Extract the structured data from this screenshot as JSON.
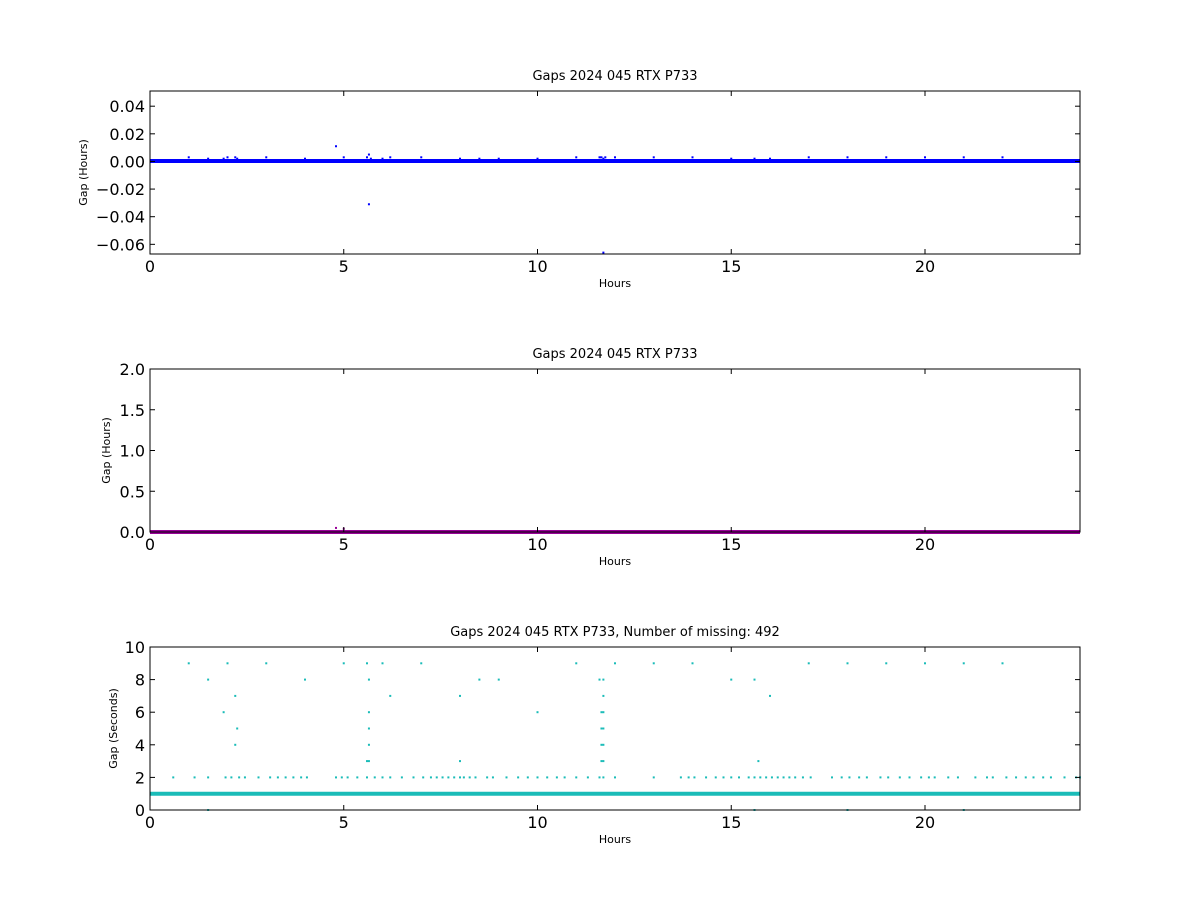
{
  "chart_data": [
    {
      "type": "scatter",
      "title": "Gaps 2024 045 RTX  P733",
      "xlabel": "Hours",
      "ylabel": "Gap (Hours)",
      "xlim": [
        0,
        24
      ],
      "ylim": [
        -0.067,
        0.051
      ],
      "xticks": [
        0,
        5,
        10,
        15,
        20
      ],
      "xtick_labels": [
        "0",
        "5",
        "10",
        "15",
        "20"
      ],
      "yticks": [
        0.04,
        0.02,
        0.0,
        -0.02,
        -0.04,
        -0.06
      ],
      "ytick_labels": [
        "0.04",
        "0.02",
        "0.00",
        "−0.02",
        "−0.04",
        "−0.06"
      ],
      "grid": false,
      "color": "#0000ff",
      "baseline": {
        "y": 0.00028,
        "x_range": [
          0,
          24
        ]
      },
      "series": [
        {
          "x": [
            1.0,
            1.5,
            1.9,
            2.0,
            2.2,
            2.25,
            3.0,
            4.0,
            4.8,
            4.8,
            5.0,
            5.0,
            5.6,
            5.65,
            5.65,
            5.7,
            6.0,
            6.2,
            6.2,
            7.0,
            8.0,
            8.5,
            9.0,
            10.0,
            11.0,
            11.6,
            11.65,
            11.7,
            11.75,
            11.7,
            12.0,
            13.0,
            14.0,
            15.0,
            15.6,
            16.0,
            17.0,
            18.0,
            19.0,
            20.0,
            21.0,
            22.0
          ],
          "y": [
            0.003,
            0.002,
            0.002,
            0.003,
            0.003,
            0.002,
            0.003,
            0.002,
            0.011,
            0.001,
            0.003,
            0.001,
            0.003,
            0.005,
            -0.031,
            0.002,
            0.002,
            0.003,
            0.0,
            0.003,
            0.002,
            0.002,
            0.002,
            0.002,
            0.003,
            0.003,
            0.003,
            0.002,
            0.003,
            -0.066,
            0.003,
            0.003,
            0.003,
            0.002,
            0.002,
            0.002,
            0.003,
            0.003,
            0.003,
            0.003,
            0.003,
            0.003
          ]
        }
      ]
    },
    {
      "type": "scatter",
      "title": "Gaps 2024 045 RTX  P733",
      "xlabel": "Hours",
      "ylabel": "Gap (Hours)",
      "xlim": [
        0,
        24
      ],
      "ylim": [
        0,
        2.0
      ],
      "xticks": [
        0,
        5,
        10,
        15,
        20
      ],
      "xtick_labels": [
        "0",
        "5",
        "10",
        "15",
        "20"
      ],
      "yticks": [
        2.0,
        1.5,
        1.0,
        0.5,
        0.0
      ],
      "ytick_labels": [
        "2.0",
        "1.5",
        "1.0",
        "0.5",
        "0.0"
      ],
      "grid": false,
      "color": "#990099",
      "baseline": {
        "y": 0.0,
        "x_range": [
          0,
          24
        ]
      },
      "series": [
        {
          "x": [
            4.8,
            5.0
          ],
          "y": [
            0.05,
            0.04
          ]
        }
      ]
    },
    {
      "type": "scatter",
      "title": "Gaps 2024 045 RTX  P733, Number of missing: 492",
      "xlabel": "Hours",
      "ylabel": "Gap (Seconds)",
      "xlim": [
        0,
        24
      ],
      "ylim": [
        0,
        10
      ],
      "xticks": [
        0,
        5,
        10,
        15,
        20
      ],
      "xtick_labels": [
        "0",
        "5",
        "10",
        "15",
        "20"
      ],
      "yticks": [
        10,
        8,
        6,
        4,
        2,
        0
      ],
      "ytick_labels": [
        "10",
        "8",
        "6",
        "4",
        "2",
        "0"
      ],
      "grid": false,
      "color": "#1abcb8",
      "baseline": {
        "y": 1.0,
        "x_range": [
          0,
          24
        ]
      },
      "series": [
        {
          "x": [
            1.0,
            2.0,
            3.0,
            5.0,
            5.6,
            6.0,
            7.0,
            11.0,
            12.0,
            13.0,
            14.0,
            17.0,
            18.0,
            19.0,
            20.0,
            21.0,
            22.0,
            1.5,
            4.0,
            5.65,
            8.5,
            9.0,
            11.6,
            11.7,
            15.0,
            15.6,
            2.2,
            6.2,
            8.0,
            11.7,
            16.0,
            1.9,
            5.65,
            10.0,
            11.65,
            11.7,
            2.25,
            5.65,
            11.65,
            11.7,
            2.2,
            5.65,
            11.65,
            11.7,
            5.6,
            5.65,
            8.0,
            11.65,
            11.7,
            15.7,
            0.6,
            1.15,
            1.5,
            1.95,
            2.1,
            2.3,
            2.45,
            2.8,
            3.1,
            3.3,
            3.5,
            3.7,
            3.9,
            4.05,
            4.8,
            4.95,
            5.1,
            5.35,
            5.6,
            5.8,
            6.0,
            6.2,
            6.5,
            6.8,
            7.05,
            7.25,
            7.4,
            7.55,
            7.7,
            7.85,
            8.0,
            8.1,
            8.25,
            8.4,
            8.7,
            8.85,
            9.2,
            9.5,
            9.75,
            10.0,
            10.25,
            10.5,
            10.7,
            11.0,
            11.3,
            11.6,
            11.7,
            12.0,
            13.0,
            13.7,
            13.9,
            14.05,
            14.35,
            14.6,
            14.8,
            15.0,
            15.2,
            15.45,
            15.6,
            15.75,
            15.9,
            16.05,
            16.2,
            16.35,
            16.5,
            16.65,
            16.85,
            17.05,
            17.6,
            17.85,
            18.05,
            18.3,
            18.5,
            18.85,
            19.05,
            19.35,
            19.6,
            19.9,
            20.1,
            20.25,
            20.6,
            20.85,
            21.3,
            21.6,
            21.75,
            22.1,
            22.35,
            22.6,
            22.8,
            23.05,
            23.25,
            23.6,
            23.9,
            24.0,
            1.5,
            4.8,
            15.6,
            18.0,
            21.0
          ],
          "y": [
            9,
            9,
            9,
            9,
            9,
            9,
            9,
            9,
            9,
            9,
            9,
            9,
            9,
            9,
            9,
            9,
            9,
            8,
            8,
            8,
            8,
            8,
            8,
            8,
            8,
            8,
            7,
            7,
            7,
            7,
            7,
            6,
            6,
            6,
            6,
            6,
            5,
            5,
            5,
            5,
            4,
            4,
            4,
            4,
            3,
            3,
            3,
            3,
            3,
            3,
            2,
            2,
            2,
            2,
            2,
            2,
            2,
            2,
            2,
            2,
            2,
            2,
            2,
            2,
            2,
            2,
            2,
            2,
            2,
            2,
            2,
            2,
            2,
            2,
            2,
            2,
            2,
            2,
            2,
            2,
            2,
            2,
            2,
            2,
            2,
            2,
            2,
            2,
            2,
            2,
            2,
            2,
            2,
            2,
            2,
            2,
            2,
            2,
            2,
            2,
            2,
            2,
            2,
            2,
            2,
            2,
            2,
            2,
            2,
            2,
            2,
            2,
            2,
            2,
            2,
            2,
            2,
            2,
            2,
            2,
            2,
            2,
            2,
            2,
            2,
            2,
            2,
            2,
            2,
            2,
            2,
            2,
            2,
            2,
            2,
            2,
            2,
            2,
            2,
            2,
            2,
            2,
            2,
            2,
            0,
            1,
            0,
            0,
            0
          ]
        }
      ]
    }
  ]
}
